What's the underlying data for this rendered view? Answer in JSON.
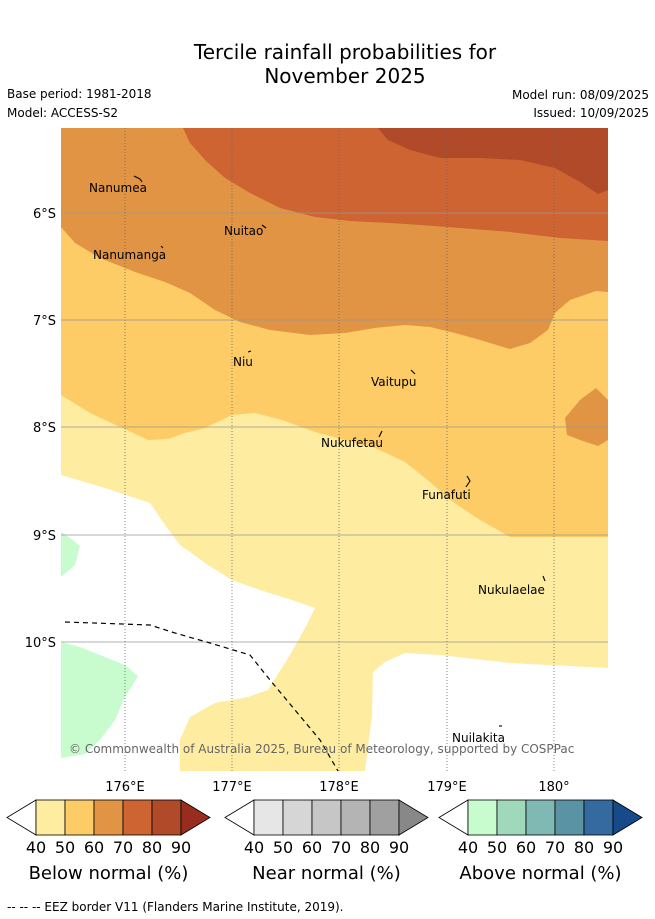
{
  "title_line1": "Tercile rainfall probabilities for",
  "title_line2": "November 2025",
  "base_period": "Base period: 1981-2018",
  "model": "Model: ACCESS-S2",
  "model_run": "Model run: 08/09/2025",
  "issued": "Issued: 10/09/2025",
  "lat_labels": [
    "6°S",
    "7°S",
    "8°S",
    "9°S",
    "10°S"
  ],
  "lon_labels": [
    "176°E",
    "177°E",
    "178°E",
    "179°E",
    "180°"
  ],
  "places": [
    "Nanumea",
    "Nuitao",
    "Nanumanga",
    "Niu",
    "Vaitupu",
    "Nukufetau",
    "Funafuti",
    "Nukulaelae",
    "Nuilakita"
  ],
  "copyright": "© Commonwealth of Australia 2025, Bureau of Meteorology, supported by COSPPac",
  "colorbars": [
    {
      "title": "Below normal (%)",
      "ticks": [
        "40",
        "50",
        "60",
        "70",
        "80",
        "90"
      ],
      "colors": [
        "#ffffff",
        "#feeca1",
        "#fecc66",
        "#e19544",
        "#cd6432",
        "#b04a29",
        "#982c1f"
      ]
    },
    {
      "title": "Near normal (%)",
      "ticks": [
        "40",
        "50",
        "60",
        "70",
        "80",
        "90"
      ],
      "colors": [
        "#ffffff",
        "#e6e6e6",
        "#d6d6d6",
        "#c6c6c6",
        "#b4b4b4",
        "#a0a0a0",
        "#888888"
      ]
    },
    {
      "title": "Above normal (%)",
      "ticks": [
        "40",
        "50",
        "60",
        "70",
        "80",
        "90"
      ],
      "colors": [
        "#ffffff",
        "#c8fccf",
        "#a0d8bc",
        "#80b8b4",
        "#5a94a4",
        "#346aa0",
        "#164a88"
      ]
    }
  ],
  "footer": "-- -- -- EEZ border V11 (Flanders Marine Institute, 2019)."
}
